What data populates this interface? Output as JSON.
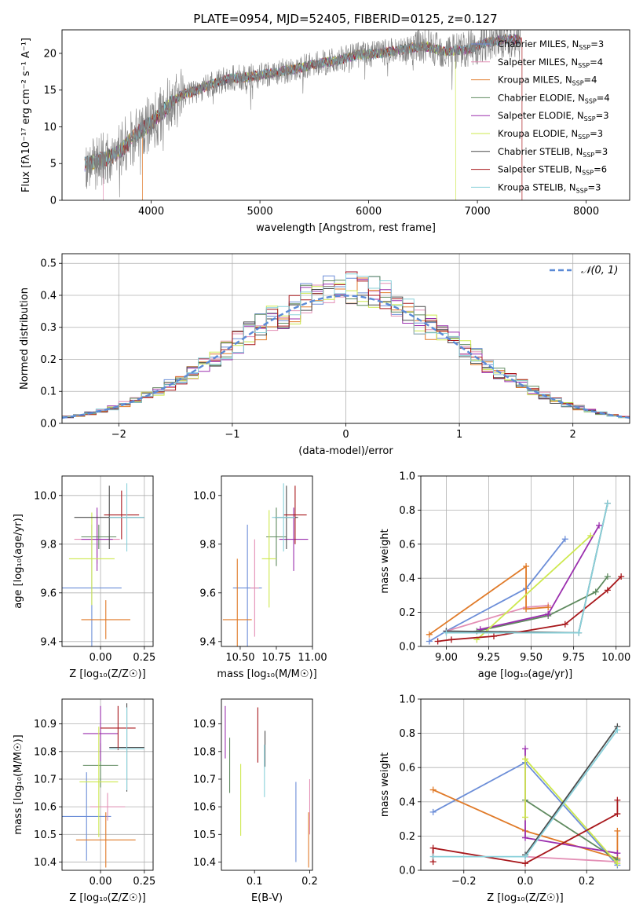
{
  "figure_title": "PLATE=0954, MJD=52405, FIBERID=0125, z=0.127",
  "colors": {
    "Chabrier MILES": "#6c8ed8",
    "Salpeter MILES": "#e38fb5",
    "Kroupa MILES": "#e07a28",
    "Chabrier ELODIE": "#5f8a5f",
    "Salpeter ELODIE": "#9b2fae",
    "Kroupa ELODIE": "#cde84e",
    "Chabrier STELIB": "#4a4a4a",
    "Salpeter STELIB": "#a8181c",
    "Kroupa STELIB": "#88d0da",
    "gaussian": "#5b8ad6",
    "observed": "#808080",
    "grid": "#b0b0b0"
  },
  "chart_data": [
    {
      "id": "spectrum",
      "type": "line",
      "xlabel": "wavelength [Angstrom, rest frame]",
      "ylabel": "Flux [fλ10⁻¹⁷ erg cm⁻² s⁻¹ A⁻¹]",
      "xlim": [
        3180,
        8400
      ],
      "ylim": [
        0,
        23.2
      ],
      "xticks": [
        4000,
        5000,
        6000,
        7000,
        8000
      ],
      "yticks": [
        0,
        5,
        10,
        15,
        20
      ],
      "grid": false,
      "legend_position": "top-right",
      "legend": [
        {
          "name": "Chabrier MILES",
          "nssp": "3"
        },
        {
          "name": "Salpeter MILES",
          "nssp": "4"
        },
        {
          "name": "Kroupa MILES",
          "nssp": "4"
        },
        {
          "name": "Chabrier ELODIE",
          "nssp": "4"
        },
        {
          "name": "Salpeter ELODIE",
          "nssp": "3"
        },
        {
          "name": "Kroupa ELODIE",
          "nssp": "3"
        },
        {
          "name": "Chabrier STELIB",
          "nssp": "3"
        },
        {
          "name": "Salpeter STELIB",
          "nssp": "6"
        },
        {
          "name": "Kroupa STELIB",
          "nssp": "3"
        }
      ],
      "continuum": {
        "wavelength": [
          3400,
          3550,
          3700,
          3800,
          3900,
          4000,
          4100,
          4200,
          4300,
          4400,
          4500,
          4700,
          4900,
          5100,
          5300,
          5500,
          5700,
          5900,
          6100,
          6300,
          6500,
          6700,
          6900,
          7100,
          7300,
          7400
        ],
        "flux": [
          5.0,
          5.5,
          6.5,
          8.0,
          9.5,
          10.5,
          12.0,
          13.5,
          14.5,
          14.8,
          15.5,
          16.5,
          16.8,
          17.3,
          17.8,
          18.5,
          19.0,
          19.8,
          20.0,
          20.5,
          21.0,
          20.3,
          20.5,
          21.5,
          22.0,
          21.8
        ]
      },
      "cutoffs": [
        {
          "series": "Salpeter MILES",
          "x": 3560
        },
        {
          "series": "Kroupa MILES",
          "x": 3920
        },
        {
          "series": "Kroupa ELODIE",
          "x": 6800
        },
        {
          "series": "Salpeter STELIB",
          "x": 7410
        }
      ]
    },
    {
      "id": "residuals",
      "type": "histogram",
      "xlabel": "(data-model)/error",
      "ylabel": "Normed distribution",
      "xlim": [
        -2.5,
        2.5
      ],
      "ylim": [
        0,
        0.53
      ],
      "xticks": [
        -2,
        -1,
        0,
        1,
        2
      ],
      "yticks": [
        0,
        0.1,
        0.2,
        0.3,
        0.4,
        0.5
      ],
      "grid": true,
      "legend_position": "top-right",
      "legend_label": "𝒩(0, 1)",
      "bin_width": 0.1,
      "gaussian": {
        "mean": 0,
        "sigma": 1
      }
    },
    {
      "id": "age-vs-Z",
      "type": "errorbar",
      "xlabel": "Z [log₁₀(Z/Z☉)]",
      "ylabel": "age  [log₁₀(age/yr)]",
      "xlim": [
        -0.22,
        0.3
      ],
      "ylim": [
        9.38,
        10.08
      ],
      "xticks": [
        0,
        0.25
      ],
      "xticklabels": [
        "0.00",
        "0.25"
      ],
      "yticks": [
        9.4,
        9.6,
        9.8,
        10.0
      ],
      "grid": true,
      "points": [
        {
          "series": "Chabrier MILES",
          "x": -0.05,
          "xerr": 0.17,
          "y": 9.62,
          "yerr": 0.26
        },
        {
          "series": "Salpeter MILES",
          "x": -0.02,
          "xerr": 0.13,
          "y": 9.82,
          "yerr": 0.1
        },
        {
          "series": "Kroupa MILES",
          "x": 0.03,
          "xerr": 0.14,
          "y": 9.49,
          "yerr": 0.08
        },
        {
          "series": "Chabrier ELODIE",
          "x": -0.01,
          "xerr": 0.1,
          "y": 9.83,
          "yerr": 0.05
        },
        {
          "series": "Salpeter ELODIE",
          "x": -0.02,
          "xerr": 0.09,
          "y": 9.82,
          "yerr": 0.13
        },
        {
          "series": "Kroupa ELODIE",
          "x": -0.05,
          "xerr": 0.13,
          "y": 9.74,
          "yerr": 0.19
        },
        {
          "series": "Chabrier STELIB",
          "x": 0.05,
          "xerr": 0.2,
          "y": 9.91,
          "yerr": 0.13
        },
        {
          "series": "Salpeter STELIB",
          "x": 0.12,
          "xerr": 0.1,
          "y": 9.92,
          "yerr": 0.1
        },
        {
          "series": "Kroupa STELIB",
          "x": 0.15,
          "xerr": 0.1,
          "y": 9.91,
          "yerr": 0.14
        }
      ]
    },
    {
      "id": "age-vs-mass",
      "type": "errorbar",
      "xlabel": "mass [log₁₀(M/M☉)]",
      "ylabel": "",
      "xlim": [
        10.37,
        11.0
      ],
      "ylim": [
        9.38,
        10.08
      ],
      "xticks": [
        10.5,
        10.75,
        11.0
      ],
      "xticklabels": [
        "10.50",
        "10.75",
        "11.00"
      ],
      "yticks": [
        9.4,
        9.6,
        9.8,
        10.0
      ],
      "grid": false,
      "points": [
        {
          "series": "Chabrier MILES",
          "x": 10.55,
          "xerr": 0.1,
          "y": 9.62,
          "yerr": 0.26
        },
        {
          "series": "Salpeter MILES",
          "x": 10.6,
          "xerr": 0.03,
          "y": 9.62,
          "yerr": 0.2
        },
        {
          "series": "Kroupa MILES",
          "x": 10.48,
          "xerr": 0.1,
          "y": 9.49,
          "yerr": 0.25
        },
        {
          "series": "Chabrier ELODIE",
          "x": 10.75,
          "xerr": 0.07,
          "y": 9.83,
          "yerr": 0.12
        },
        {
          "series": "Salpeter ELODIE",
          "x": 10.87,
          "xerr": 0.1,
          "y": 9.82,
          "yerr": 0.13
        },
        {
          "series": "Kroupa ELODIE",
          "x": 10.7,
          "xerr": 0.05,
          "y": 9.74,
          "yerr": 0.2
        },
        {
          "series": "Chabrier STELIB",
          "x": 10.82,
          "xerr": 0.08,
          "y": 9.91,
          "yerr": 0.13
        },
        {
          "series": "Salpeter STELIB",
          "x": 10.88,
          "xerr": 0.08,
          "y": 9.92,
          "yerr": 0.12
        },
        {
          "series": "Kroupa STELIB",
          "x": 10.8,
          "xerr": 0.08,
          "y": 9.91,
          "yerr": 0.14
        }
      ]
    },
    {
      "id": "weight-vs-age",
      "type": "line",
      "xlabel": "age  [log₁₀(age/yr)]",
      "ylabel": "mass weight",
      "xlim": [
        8.85,
        10.08
      ],
      "ylim": [
        0,
        1
      ],
      "xticks": [
        9.0,
        9.25,
        9.5,
        9.75,
        10.0
      ],
      "xticklabels": [
        "9.00",
        "9.25",
        "9.50",
        "9.75",
        "10.00"
      ],
      "yticks": [
        0,
        0.2,
        0.4,
        0.6,
        0.8,
        1.0
      ],
      "grid": true,
      "series": [
        {
          "name": "Chabrier MILES",
          "x": [
            8.9,
            9.0,
            9.47,
            9.7
          ],
          "y": [
            0.03,
            0.09,
            0.34,
            0.63
          ]
        },
        {
          "name": "Salpeter MILES",
          "x": [
            9.0,
            9.47,
            9.6
          ],
          "y": [
            0.09,
            0.23,
            0.24
          ]
        },
        {
          "name": "Kroupa MILES",
          "x": [
            8.9,
            9.47,
            9.47,
            9.6
          ],
          "y": [
            0.07,
            0.47,
            0.22,
            0.23
          ]
        },
        {
          "name": "Chabrier ELODIE",
          "x": [
            9.18,
            9.6,
            9.88,
            9.95
          ],
          "y": [
            0.09,
            0.18,
            0.32,
            0.41
          ]
        },
        {
          "name": "Salpeter ELODIE",
          "x": [
            9.2,
            9.6,
            9.9
          ],
          "y": [
            0.1,
            0.19,
            0.71
          ]
        },
        {
          "name": "Kroupa ELODIE",
          "x": [
            9.18,
            9.85
          ],
          "y": [
            0.04,
            0.65
          ]
        },
        {
          "name": "Chabrier STELIB",
          "x": [
            9.0,
            9.78,
            9.95
          ],
          "y": [
            0.09,
            0.08,
            0.84
          ]
        },
        {
          "name": "Salpeter STELIB",
          "x": [
            8.95,
            9.03,
            9.28,
            9.7,
            9.95,
            10.03
          ],
          "y": [
            0.03,
            0.04,
            0.06,
            0.13,
            0.33,
            0.41
          ]
        },
        {
          "name": "Kroupa STELIB",
          "x": [
            9.0,
            9.78,
            9.95
          ],
          "y": [
            0.08,
            0.08,
            0.84
          ]
        }
      ]
    },
    {
      "id": "mass-vs-Z",
      "type": "errorbar",
      "xlabel": "Z [log₁₀(Z/Z☉)]",
      "ylabel": "mass [log₁₀(M/M☉)]",
      "xlim": [
        -0.22,
        0.3
      ],
      "ylim": [
        10.37,
        10.99
      ],
      "xticks": [
        0,
        0.25
      ],
      "xticklabels": [
        "0.00",
        "0.25"
      ],
      "yticks": [
        10.4,
        10.5,
        10.6,
        10.7,
        10.8,
        10.9
      ],
      "grid": true,
      "points": [
        {
          "series": "Chabrier MILES",
          "x": -0.08,
          "xerr": 0.14,
          "y": 10.565,
          "yerr": 0.16
        },
        {
          "series": "Salpeter MILES",
          "x": 0.04,
          "xerr": 0.1,
          "y": 10.6,
          "yerr": 0.05
        },
        {
          "series": "Kroupa MILES",
          "x": 0.03,
          "xerr": 0.17,
          "y": 10.48,
          "yerr": 0.1
        },
        {
          "series": "Chabrier ELODIE",
          "x": 0.0,
          "xerr": 0.1,
          "y": 10.75,
          "yerr": 0.08
        },
        {
          "series": "Salpeter ELODIE",
          "x": 0.0,
          "xerr": 0.1,
          "y": 10.865,
          "yerr": 0.1
        },
        {
          "series": "Kroupa ELODIE",
          "x": -0.01,
          "xerr": 0.11,
          "y": 10.69,
          "yerr": 0.2
        },
        {
          "series": "Chabrier STELIB",
          "x": 0.15,
          "xerr": 0.1,
          "y": 10.815,
          "yerr": 0.16
        },
        {
          "series": "Salpeter STELIB",
          "x": 0.1,
          "xerr": 0.1,
          "y": 10.885,
          "yerr": 0.08
        },
        {
          "series": "Kroupa STELIB",
          "x": 0.15,
          "xerr": 0.1,
          "y": 10.81,
          "yerr": 0.15
        }
      ]
    },
    {
      "id": "mass-vs-ebv",
      "type": "errorbar",
      "xlabel": "E(B-V)",
      "ylabel": "",
      "xlim": [
        0.04,
        0.205
      ],
      "ylim": [
        10.37,
        10.99
      ],
      "xticks": [
        0.1,
        0.2
      ],
      "xticklabels": [
        "0.1",
        "0.2"
      ],
      "yticks": [
        10.4,
        10.5,
        10.6,
        10.7,
        10.8,
        10.9
      ],
      "grid": false,
      "points": [
        {
          "series": "Chabrier MILES",
          "x": 0.175,
          "y": 10.545,
          "yerr": 0.145
        },
        {
          "series": "Salpeter MILES",
          "x": 0.2,
          "y": 10.6,
          "yerr": 0.1
        },
        {
          "series": "Kroupa MILES",
          "x": 0.198,
          "y": 10.48,
          "yerr": 0.1
        },
        {
          "series": "Chabrier ELODIE",
          "x": 0.055,
          "y": 10.75,
          "yerr": 0.1
        },
        {
          "series": "Salpeter ELODIE",
          "x": 0.047,
          "y": 10.87,
          "yerr": 0.095
        },
        {
          "series": "Kroupa ELODIE",
          "x": 0.075,
          "y": 10.625,
          "yerr": 0.13
        },
        {
          "series": "Chabrier STELIB",
          "x": 0.119,
          "y": 10.81,
          "yerr": 0.065
        },
        {
          "series": "Salpeter STELIB",
          "x": 0.106,
          "y": 10.86,
          "yerr": 0.1
        },
        {
          "series": "Kroupa STELIB",
          "x": 0.118,
          "y": 10.73,
          "yerr": 0.095
        }
      ]
    },
    {
      "id": "weight-vs-Z",
      "type": "line",
      "xlabel": "Z [log₁₀(Z/Z☉)]",
      "ylabel": "mass weight",
      "xlim": [
        -0.34,
        0.34
      ],
      "ylim": [
        0,
        1
      ],
      "xticks": [
        -0.2,
        0.0,
        0.2
      ],
      "xticklabels": [
        "−0.2",
        "0.0",
        "0.2"
      ],
      "yticks": [
        0,
        0.2,
        0.4,
        0.6,
        0.8,
        1.0
      ],
      "grid": true,
      "series": [
        {
          "name": "Chabrier MILES",
          "x": [
            -0.3,
            0.0,
            0.3
          ],
          "y": [
            0.34,
            0.63,
            0.03
          ]
        },
        {
          "name": "Salpeter MILES",
          "x": [
            0.0,
            0.3
          ],
          "y": [
            0.08,
            0.05
          ]
        },
        {
          "name": "Kroupa MILES",
          "x": [
            -0.3,
            0.0,
            0.3,
            0.3
          ],
          "y": [
            0.47,
            0.23,
            0.07,
            0.23
          ]
        },
        {
          "name": "Chabrier ELODIE",
          "x": [
            0.0,
            0.3
          ],
          "y": [
            0.41,
            0.06
          ]
        },
        {
          "name": "Salpeter ELODIE",
          "x": [
            0.0,
            0.0,
            0.3
          ],
          "y": [
            0.71,
            0.19,
            0.1
          ]
        },
        {
          "name": "Kroupa ELODIE",
          "x": [
            0.0,
            0.0,
            0.3
          ],
          "y": [
            0.31,
            0.65,
            0.04
          ]
        },
        {
          "name": "Chabrier STELIB",
          "x": [
            0.0,
            0.3
          ],
          "y": [
            0.09,
            0.84
          ]
        },
        {
          "name": "Salpeter STELIB",
          "x": [
            -0.3,
            -0.3,
            0.0,
            0.3,
            0.3
          ],
          "y": [
            0.05,
            0.13,
            0.04,
            0.33,
            0.41
          ]
        },
        {
          "name": "Kroupa STELIB",
          "x": [
            -0.3,
            0.0,
            0.3
          ],
          "y": [
            0.08,
            0.08,
            0.82
          ]
        }
      ]
    }
  ]
}
